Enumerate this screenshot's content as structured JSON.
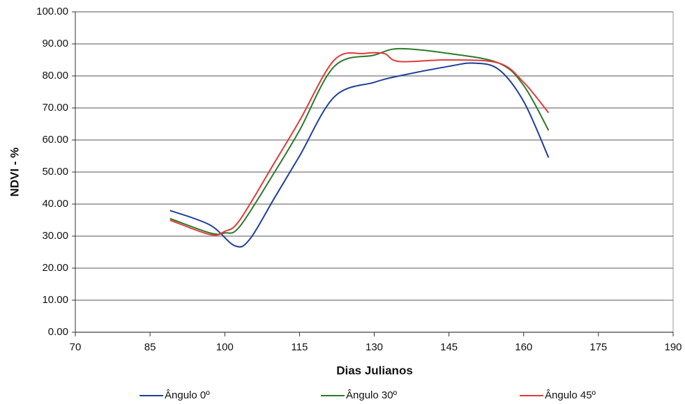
{
  "chart_data": {
    "type": "line",
    "x_label": "Dias Julianos",
    "y_label": "NDVI - %",
    "xlim": [
      70,
      190
    ],
    "xticks": [
      70,
      85,
      100,
      115,
      130,
      145,
      160,
      175,
      190
    ],
    "ylim": [
      0,
      100
    ],
    "yticks": [
      {
        "value": 0,
        "label": "0.00"
      },
      {
        "value": 10,
        "label": "10.00"
      },
      {
        "value": 20,
        "label": "20.00"
      },
      {
        "value": 30,
        "label": "30.00"
      },
      {
        "value": 40,
        "label": "40.00"
      },
      {
        "value": 50,
        "label": "50.00"
      },
      {
        "value": 60,
        "label": "60.00"
      },
      {
        "value": 70,
        "label": "70.00"
      },
      {
        "value": 80,
        "label": "80.00"
      },
      {
        "value": 90,
        "label": "90.00"
      },
      {
        "value": 100,
        "label": "100.00"
      }
    ],
    "grid": true,
    "legend": "bottom",
    "series": [
      {
        "name": "Ângulo 0º",
        "color": "#1f3f9a",
        "x": [
          89,
          97,
          102,
          105,
          110,
          115,
          122,
          130,
          135,
          145,
          150,
          155,
          160,
          165
        ],
        "values": [
          38,
          33.5,
          27,
          29,
          42,
          55,
          73.5,
          78,
          80,
          83,
          84,
          82,
          72,
          54.5
        ]
      },
      {
        "name": "Ângulo 30º",
        "color": "#2a7a2a",
        "x": [
          89,
          97,
          100,
          103,
          110,
          115,
          122,
          130,
          135,
          145,
          155,
          160,
          165
        ],
        "values": [
          35.5,
          31,
          31,
          33,
          50,
          63,
          83,
          86.5,
          88.5,
          87,
          84,
          77,
          63
        ]
      },
      {
        "name": "Ângulo 45º",
        "color": "#e03a3a",
        "x": [
          89,
          97,
          100,
          103,
          110,
          115,
          122,
          128,
          132,
          135,
          145,
          155,
          160,
          165
        ],
        "values": [
          35,
          30.5,
          31.5,
          35,
          53,
          66,
          85,
          87,
          87,
          84.5,
          85,
          84,
          78,
          68.5
        ]
      }
    ]
  }
}
